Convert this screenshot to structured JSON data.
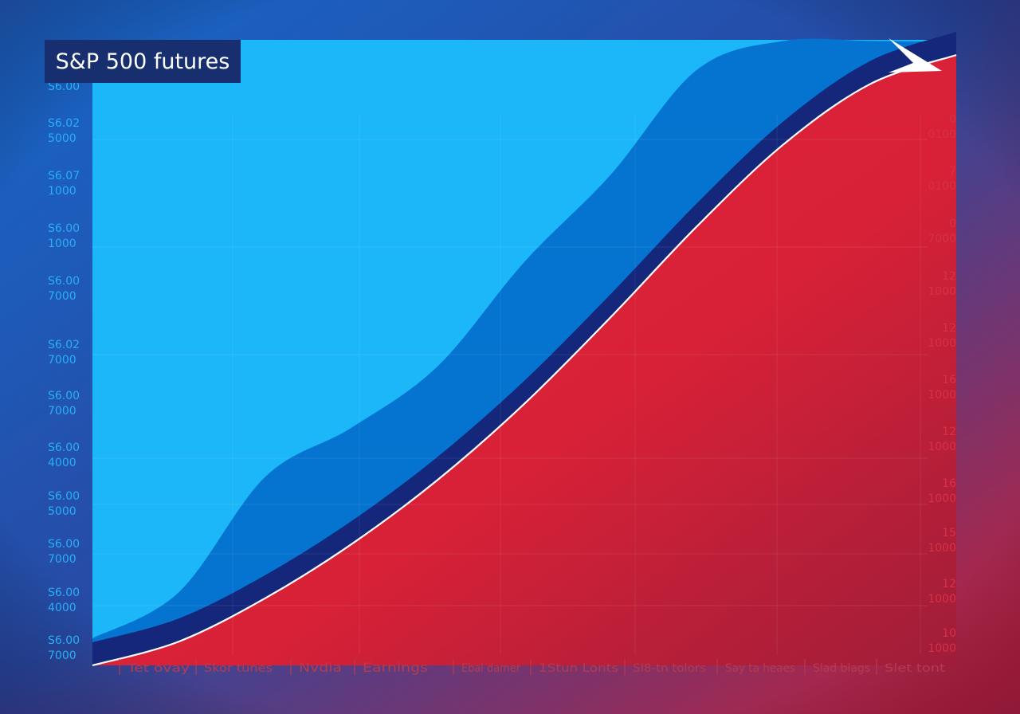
{
  "chart_data": {
    "type": "area",
    "title": "S&P 500 futures",
    "xlabel": "",
    "ylabel": "",
    "x_tick_labels": [
      "Tet ovay",
      "Skor tunes",
      "Nvdia",
      "Earnings",
      "Ebal damer",
      "1Stun Lonts",
      "SI8-tn tolors",
      "Say ta heaes",
      "Slad blags",
      "Slet tont"
    ],
    "left_tick_labels": [
      [
        "S6.00"
      ],
      [
        "S6.02",
        "5000"
      ],
      [
        "S6.07",
        "1000"
      ],
      [
        "S6.00",
        "1000"
      ],
      [
        "S6.00",
        "7000"
      ],
      [
        "S6.02",
        "7000"
      ],
      [
        "S6.00",
        "7000"
      ],
      [
        "S6.00",
        "4000"
      ],
      [
        "S6.00",
        "5000"
      ],
      [
        "S6.00",
        "7000"
      ],
      [
        "S6.00",
        "4000"
      ],
      [
        "S6.00",
        "7000"
      ]
    ],
    "right_tick_labels": [
      [
        "0",
        "0100"
      ],
      [
        "7",
        "0100"
      ],
      [
        "0",
        "7000"
      ],
      [
        "12",
        "1000"
      ],
      [
        "12",
        "1000"
      ],
      [
        "16",
        "1000"
      ],
      [
        "12",
        "1000"
      ],
      [
        "16",
        "1000"
      ],
      [
        "15",
        "1000"
      ],
      [
        "12",
        "1000"
      ],
      [
        "10",
        "1000"
      ]
    ],
    "series": [
      {
        "values": [
          0.5,
          1.35,
          3.48,
          4.39,
          5.53,
          7.45,
          9.06,
          11.0,
          11.53,
          11.53,
          11.51
        ]
      },
      {
        "values": [
          0.0,
          0.44,
          1.24,
          2.24,
          3.43,
          4.83,
          6.43,
          8.11,
          9.62,
          10.73,
          11.27
        ]
      }
    ],
    "x": [
      0,
      1,
      2,
      3,
      4,
      5,
      6,
      7,
      8,
      9,
      10
    ],
    "x_range": [
      0,
      10
    ],
    "y_range": [
      0,
      11.55
    ],
    "grid": true,
    "colors": {
      "upper_area": "#1cb7f8",
      "middle_band": "#0574d1",
      "lower_band": "#14277a",
      "red_area": "#d42139",
      "outline": "#ffffff",
      "left_tick": "#2aaef5",
      "right_tick": "#d73048",
      "bottom_tick": "#b73a4f",
      "title_box": "#172f6f"
    }
  }
}
